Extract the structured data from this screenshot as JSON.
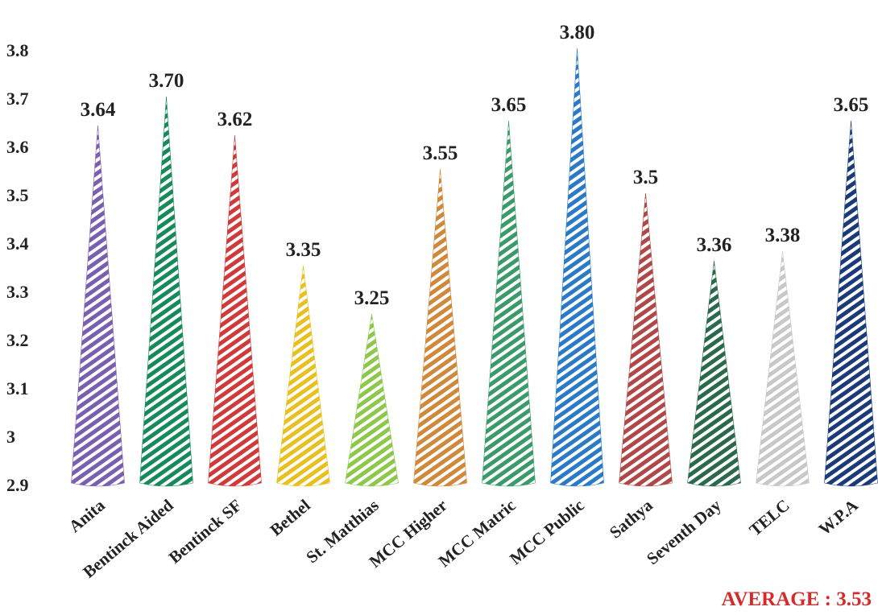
{
  "chart_data": {
    "type": "cone",
    "categories": [
      "Anita",
      "Bentinck Aided",
      "Bentinck SF",
      "Bethel",
      "St. Matthias",
      "MCC Higher",
      "MCC Matric",
      "MCC Public",
      "Sathya",
      "Seventh Day",
      "TELC",
      "W.P.A"
    ],
    "values": [
      3.64,
      3.7,
      3.62,
      3.35,
      3.25,
      3.55,
      3.65,
      3.8,
      3.5,
      3.36,
      3.38,
      3.65
    ],
    "value_labels": [
      "3.64",
      "3.70",
      "3.62",
      "3.35",
      "3.25",
      "3.55",
      "3.65",
      "3.80",
      "3.5",
      "3.36",
      "3.38",
      "3.65"
    ],
    "colors": [
      "#7a5fb0",
      "#178a5a",
      "#d03a3a",
      "#e8c020",
      "#8cc84a",
      "#d0883a",
      "#3a9a6a",
      "#2a7ac8",
      "#b04848",
      "#2a6a4a",
      "#c8c8c8",
      "#1a3a7a"
    ],
    "ylim": [
      2.9,
      3.8
    ],
    "yticks": [
      2.9,
      3,
      3.1,
      3.2,
      3.3,
      3.4,
      3.5,
      3.6,
      3.7,
      3.8
    ],
    "annotation": "AVERAGE : 3.53"
  }
}
